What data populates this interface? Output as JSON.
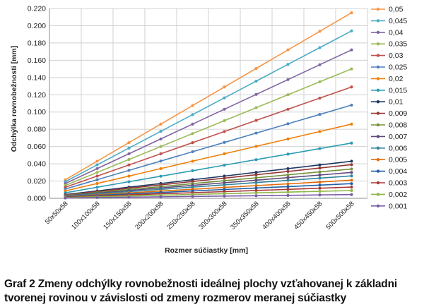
{
  "chart_data": {
    "type": "line",
    "ylabel": "Odchýlka rovnobežnosti [mm]",
    "xlabel": "Rozmer súčiastky [mm]",
    "categories": [
      "50x50x58",
      "100x100x58",
      "150x150x58",
      "200x200x58",
      "250x250x58",
      "300x300x58",
      "350x350x58",
      "400x400x58",
      "450x450x58",
      "500x500x58"
    ],
    "ylim": [
      0,
      0.22
    ],
    "yticks": [
      "0.000",
      "0.020",
      "0.040",
      "0.060",
      "0.080",
      "0.100",
      "0.120",
      "0.140",
      "0.160",
      "0.180",
      "0.200",
      "0.220"
    ],
    "grid": true,
    "legend_position": "right",
    "series": [
      {
        "name": "0,05",
        "color": "#f79646",
        "values": [
          0.0215,
          0.043,
          0.0645,
          0.086,
          0.1075,
          0.129,
          0.1505,
          0.172,
          0.1935,
          0.215
        ]
      },
      {
        "name": "0,045",
        "color": "#4bacc6",
        "values": [
          0.0194,
          0.0388,
          0.0582,
          0.0776,
          0.097,
          0.1164,
          0.1358,
          0.1552,
          0.1746,
          0.194
        ]
      },
      {
        "name": "0,04",
        "color": "#8064a2",
        "values": [
          0.0172,
          0.0344,
          0.0516,
          0.0688,
          0.086,
          0.1032,
          0.1204,
          0.1376,
          0.1548,
          0.172
        ]
      },
      {
        "name": "0,035",
        "color": "#9bbb59",
        "values": [
          0.015,
          0.03,
          0.045,
          0.06,
          0.075,
          0.09,
          0.105,
          0.12,
          0.135,
          0.15
        ]
      },
      {
        "name": "0,03",
        "color": "#c0504d",
        "values": [
          0.0129,
          0.0258,
          0.0387,
          0.0516,
          0.0645,
          0.0774,
          0.0903,
          0.1032,
          0.1161,
          0.129
        ]
      },
      {
        "name": "0,025",
        "color": "#4f81bd",
        "values": [
          0.0108,
          0.0216,
          0.0324,
          0.0432,
          0.054,
          0.0648,
          0.0756,
          0.0864,
          0.0972,
          0.108
        ]
      },
      {
        "name": "0,02",
        "color": "#f07f09",
        "values": [
          0.0086,
          0.0172,
          0.0258,
          0.0344,
          0.043,
          0.0516,
          0.0602,
          0.0688,
          0.0774,
          0.086
        ]
      },
      {
        "name": "0,015",
        "color": "#2c9bb3",
        "values": [
          0.0064,
          0.0128,
          0.0192,
          0.0256,
          0.032,
          0.0384,
          0.0448,
          0.0512,
          0.0576,
          0.064
        ]
      },
      {
        "name": "0,01",
        "color": "#1f3864",
        "values": [
          0.0043,
          0.0086,
          0.0129,
          0.0172,
          0.0215,
          0.0258,
          0.0301,
          0.0344,
          0.0387,
          0.043
        ]
      },
      {
        "name": "0,009",
        "color": "#953734",
        "values": [
          0.0039,
          0.0078,
          0.0117,
          0.0156,
          0.0195,
          0.0234,
          0.0273,
          0.0312,
          0.0351,
          0.039
        ]
      },
      {
        "name": "0,008",
        "color": "#76923c",
        "values": [
          0.0034,
          0.0068,
          0.0102,
          0.0136,
          0.017,
          0.0204,
          0.0238,
          0.0272,
          0.0306,
          0.034
        ]
      },
      {
        "name": "0,007",
        "color": "#5f497a",
        "values": [
          0.003,
          0.006,
          0.009,
          0.012,
          0.015,
          0.018,
          0.021,
          0.024,
          0.027,
          0.03
        ]
      },
      {
        "name": "0,006",
        "color": "#31859c",
        "values": [
          0.0026,
          0.0052,
          0.0078,
          0.0104,
          0.013,
          0.0156,
          0.0182,
          0.0208,
          0.0234,
          0.026
        ]
      },
      {
        "name": "0,005",
        "color": "#e36c09",
        "values": [
          0.0021,
          0.0042,
          0.0063,
          0.0084,
          0.0105,
          0.0126,
          0.0147,
          0.0168,
          0.0189,
          0.021
        ]
      },
      {
        "name": "0,004",
        "color": "#1f5fa8",
        "values": [
          0.0017,
          0.0034,
          0.0051,
          0.0068,
          0.0085,
          0.0102,
          0.0119,
          0.0136,
          0.0153,
          0.017
        ]
      },
      {
        "name": "0,003",
        "color": "#a83a36",
        "values": [
          0.0013,
          0.0026,
          0.0039,
          0.0052,
          0.0065,
          0.0078,
          0.0091,
          0.0104,
          0.0117,
          0.013
        ]
      },
      {
        "name": "0,002",
        "color": "#8fb745",
        "values": [
          0.0009,
          0.0018,
          0.0027,
          0.0036,
          0.0045,
          0.0054,
          0.0063,
          0.0072,
          0.0081,
          0.009
        ]
      },
      {
        "name": "0,001",
        "color": "#7a5ca8",
        "values": [
          0.0004,
          0.0009,
          0.0013,
          0.0017,
          0.0022,
          0.0026,
          0.003,
          0.0034,
          0.0039,
          0.0043
        ]
      }
    ]
  },
  "caption": "Graf 2 Zmeny odchýlky rovnobežnosti ideálnej plochy vzťahovanej k základni tvorenej rovinou v závislosti od zmeny rozmerov meranej súčiastky"
}
